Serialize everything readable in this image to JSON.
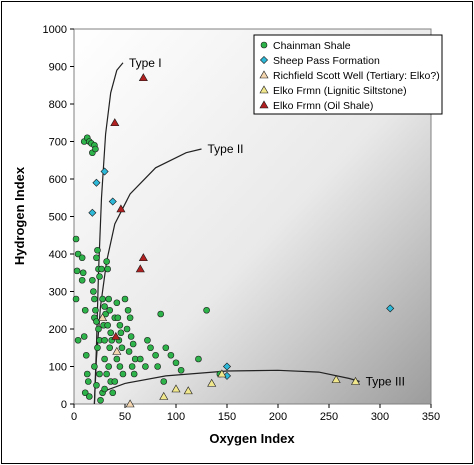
{
  "chart_data": {
    "type": "scatter",
    "title": "",
    "xlabel": "Oxygen Index",
    "ylabel": "Hydrogen Index",
    "xlim": [
      0,
      350
    ],
    "ylim": [
      0,
      1000
    ],
    "xticks": [
      0,
      50,
      100,
      150,
      200,
      250,
      300,
      350
    ],
    "yticks": [
      0,
      100,
      200,
      300,
      400,
      500,
      600,
      700,
      800,
      900,
      1000
    ],
    "grid": false,
    "legend_position": "top-right",
    "series": [
      {
        "name": "Chainman Shale",
        "marker": "circle",
        "color": "#2db34a",
        "points": [
          [
            10,
            700
          ],
          [
            13,
            710
          ],
          [
            15,
            700
          ],
          [
            17,
            695
          ],
          [
            20,
            690
          ],
          [
            18,
            670
          ],
          [
            21,
            680
          ],
          [
            2,
            440
          ],
          [
            4,
            400
          ],
          [
            3,
            355
          ],
          [
            2,
            280
          ],
          [
            4,
            170
          ],
          [
            8,
            390
          ],
          [
            9,
            350
          ],
          [
            8,
            330
          ],
          [
            11,
            250
          ],
          [
            10,
            180
          ],
          [
            12,
            130
          ],
          [
            13,
            80
          ],
          [
            14,
            60
          ],
          [
            11,
            30
          ],
          [
            15,
            20
          ],
          [
            18,
            330
          ],
          [
            19,
            300
          ],
          [
            20,
            280
          ],
          [
            21,
            250
          ],
          [
            22,
            390
          ],
          [
            23,
            410
          ],
          [
            24,
            360
          ],
          [
            25,
            340
          ],
          [
            20,
            230
          ],
          [
            22,
            220
          ],
          [
            24,
            200
          ],
          [
            25,
            170
          ],
          [
            23,
            150
          ],
          [
            20,
            100
          ],
          [
            25,
            80
          ],
          [
            22,
            50
          ],
          [
            28,
            30
          ],
          [
            26,
            10
          ],
          [
            27,
            360
          ],
          [
            28,
            280
          ],
          [
            30,
            260
          ],
          [
            31,
            240
          ],
          [
            29,
            210
          ],
          [
            30,
            170
          ],
          [
            32,
            380
          ],
          [
            33,
            360
          ],
          [
            34,
            280
          ],
          [
            35,
            250
          ],
          [
            33,
            210
          ],
          [
            36,
            190
          ],
          [
            37,
            170
          ],
          [
            35,
            150
          ],
          [
            30,
            120
          ],
          [
            34,
            100
          ],
          [
            32,
            80
          ],
          [
            36,
            60
          ],
          [
            30,
            40
          ],
          [
            38,
            30
          ],
          [
            40,
            230
          ],
          [
            42,
            270
          ],
          [
            43,
            230
          ],
          [
            45,
            210
          ],
          [
            46,
            190
          ],
          [
            44,
            170
          ],
          [
            47,
            150
          ],
          [
            42,
            120
          ],
          [
            45,
            100
          ],
          [
            48,
            80
          ],
          [
            40,
            60
          ],
          [
            50,
            280
          ],
          [
            53,
            250
          ],
          [
            55,
            230
          ],
          [
            52,
            200
          ],
          [
            56,
            180
          ],
          [
            58,
            160
          ],
          [
            54,
            140
          ],
          [
            60,
            120
          ],
          [
            57,
            100
          ],
          [
            59,
            80
          ],
          [
            65,
            120
          ],
          [
            70,
            100
          ],
          [
            72,
            170
          ],
          [
            75,
            150
          ],
          [
            80,
            130
          ],
          [
            82,
            100
          ],
          [
            85,
            240
          ],
          [
            88,
            60
          ],
          [
            90,
            150
          ],
          [
            95,
            130
          ],
          [
            100,
            110
          ],
          [
            105,
            90
          ],
          [
            122,
            120
          ],
          [
            130,
            250
          ],
          [
            143,
            80
          ]
        ]
      },
      {
        "name": "Sheep Pass Formation",
        "marker": "diamond",
        "color": "#2eb8d8",
        "points": [
          [
            18,
            510
          ],
          [
            22,
            590
          ],
          [
            30,
            620
          ],
          [
            38,
            540
          ],
          [
            150,
            100
          ],
          [
            150,
            75
          ],
          [
            310,
            255
          ]
        ]
      },
      {
        "name": "Richfield Scott Well (Tertiary: Elko?)",
        "marker": "triangle",
        "color": "#f3d6b0",
        "points": [
          [
            28,
            230
          ],
          [
            42,
            140
          ],
          [
            55,
            0
          ]
        ]
      },
      {
        "name": "Elko Frmn (Lignitic Siltstone)",
        "marker": "triangle",
        "color": "#f0e68c",
        "points": [
          [
            88,
            20
          ],
          [
            100,
            40
          ],
          [
            112,
            35
          ],
          [
            135,
            55
          ],
          [
            145,
            80
          ],
          [
            257,
            65
          ],
          [
            276,
            60
          ]
        ]
      },
      {
        "name": "Elko Frmn (Oil Shale)",
        "marker": "triangle",
        "color": "#b02020",
        "points": [
          [
            68,
            870
          ],
          [
            40,
            750
          ],
          [
            46,
            520
          ],
          [
            65,
            360
          ],
          [
            68,
            390
          ],
          [
            41,
            180
          ]
        ]
      }
    ],
    "curves": [
      {
        "label": "Type I",
        "points": [
          [
            20,
            0
          ],
          [
            22,
            150
          ],
          [
            24,
            350
          ],
          [
            27,
            550
          ],
          [
            31,
            720
          ],
          [
            36,
            830
          ],
          [
            42,
            890
          ],
          [
            48,
            910
          ]
        ]
      },
      {
        "label": "Type II",
        "points": [
          [
            20,
            0
          ],
          [
            22,
            120
          ],
          [
            26,
            260
          ],
          [
            32,
            380
          ],
          [
            40,
            480
          ],
          [
            55,
            560
          ],
          [
            80,
            630
          ],
          [
            110,
            670
          ],
          [
            125,
            680
          ]
        ]
      },
      {
        "label": "Type III",
        "points": [
          [
            25,
            30
          ],
          [
            50,
            55
          ],
          [
            90,
            75
          ],
          [
            150,
            88
          ],
          [
            200,
            90
          ],
          [
            240,
            85
          ],
          [
            270,
            68
          ],
          [
            280,
            60
          ]
        ]
      }
    ]
  }
}
